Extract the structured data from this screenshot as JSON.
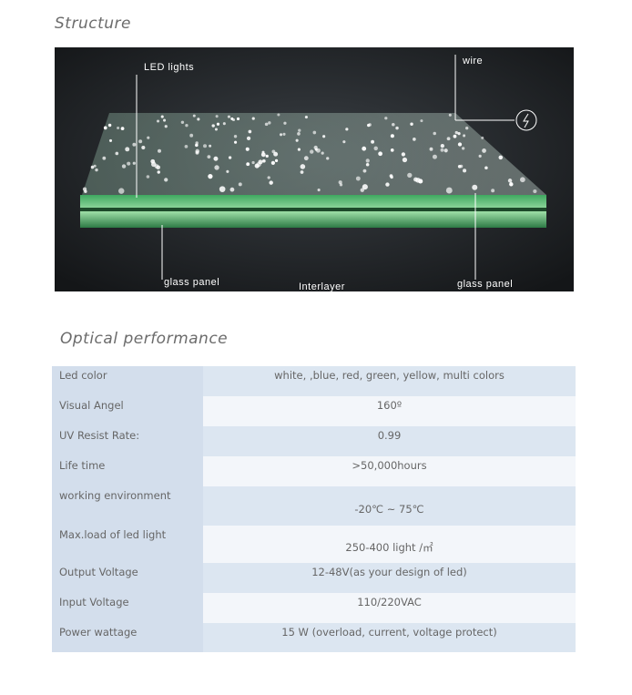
{
  "structure": {
    "title": "Structure",
    "labels": {
      "led": "LED lights",
      "wire": "wire",
      "glass_left": "glass panel",
      "interlayer": "Interlayer",
      "glass_right": "glass panel"
    }
  },
  "optical": {
    "title": "Optical performance",
    "rows": [
      {
        "label": "Led color",
        "value": "white, ,blue, red, green, yellow, multi colors"
      },
      {
        "label": "Visual Angel",
        "value": "160º"
      },
      {
        "label": "UV Resist Rate:",
        "value": "0.99"
      },
      {
        "label": "Life time",
        "value": ">50,000hours"
      },
      {
        "label": "working environment",
        "value": "-20℃ ~ 75℃"
      },
      {
        "label": "Max.load of led light",
        "value": "250-400 light /㎡"
      },
      {
        "label": "Output Voltage",
        "value": "12-48V(as your design of led)"
      },
      {
        "label": "Input Voltage",
        "value": "110/220VAC"
      },
      {
        "label": "Power wattage",
        "value": "15 W (overload,  current, voltage protect)"
      }
    ]
  }
}
